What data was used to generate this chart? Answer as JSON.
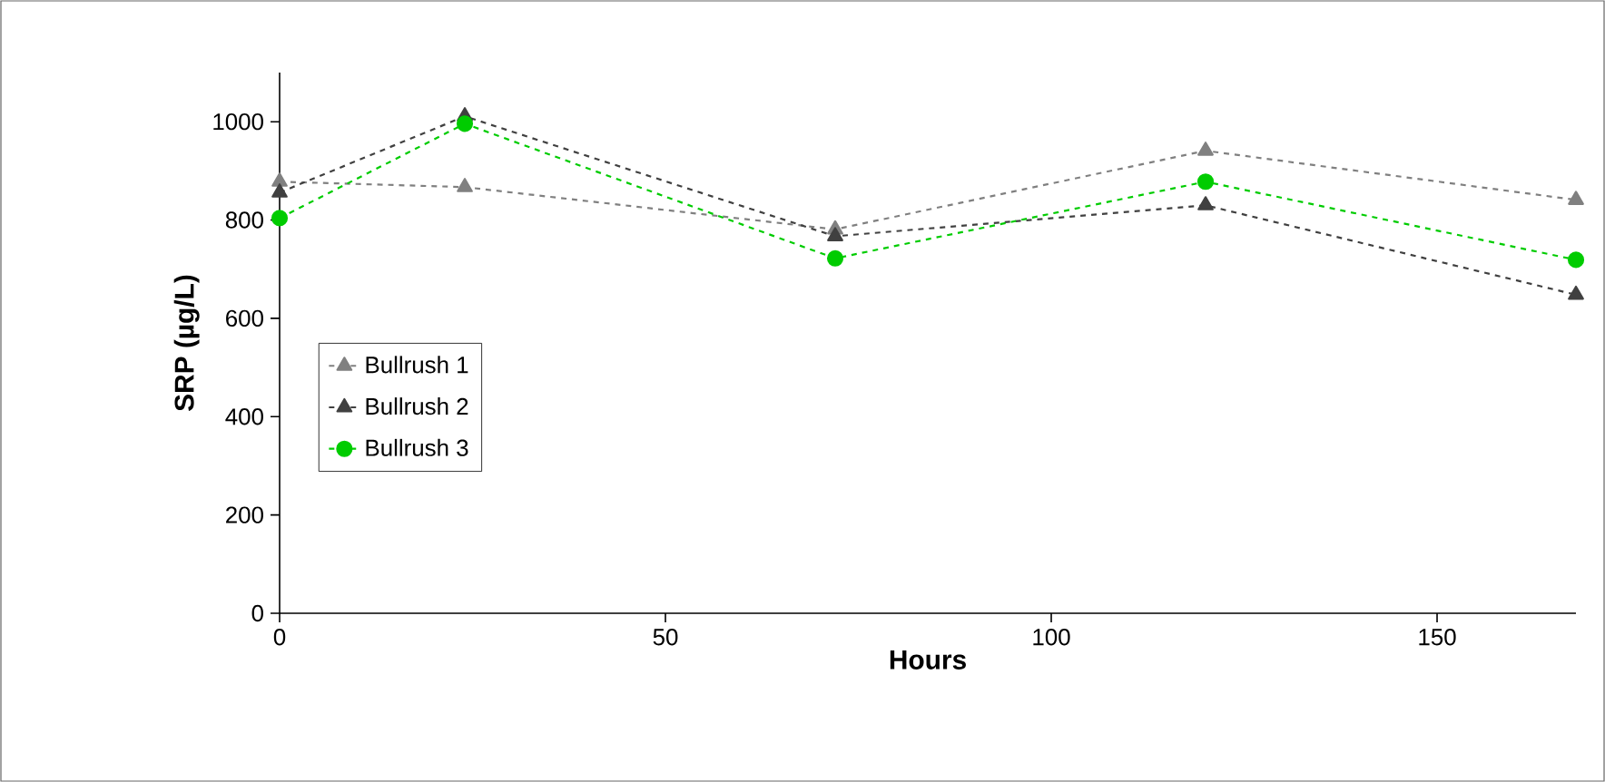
{
  "chart_data": {
    "type": "line",
    "xlabel": "Hours",
    "ylabel": "SRP (µg/L)",
    "x": [
      0,
      24,
      72,
      120,
      168
    ],
    "series": [
      {
        "name": "Bullrush 1",
        "color": "#808080",
        "marker": "triangle",
        "values": [
          878,
          867,
          781,
          941,
          841
        ]
      },
      {
        "name": "Bullrush 2",
        "color": "#404040",
        "marker": "triangle",
        "values": [
          856,
          1011,
          767,
          830,
          648
        ]
      },
      {
        "name": "Bullrush 3",
        "color": "#00cc00",
        "marker": "circle",
        "values": [
          804,
          996,
          722,
          878,
          719
        ]
      }
    ],
    "xlim": [
      0,
      168
    ],
    "xticks": [
      0,
      50,
      100,
      150
    ],
    "ylim": [
      0,
      1100
    ],
    "yticks": [
      0,
      200,
      400,
      600,
      800,
      1000
    ],
    "line_style": "dashed",
    "grid": false,
    "legend": "left"
  }
}
